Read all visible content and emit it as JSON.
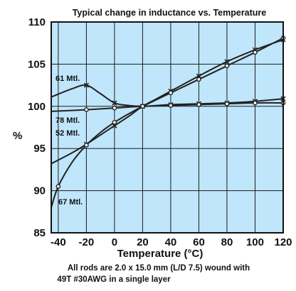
{
  "chart_data": {
    "type": "line",
    "title": "Typical change in inductance vs. Temperature",
    "xlabel": "Temperature (°C)",
    "ylabel": "%",
    "xlim": [
      -45,
      120
    ],
    "ylim": [
      85,
      110
    ],
    "xticks": [
      -40,
      -20,
      0,
      20,
      40,
      60,
      80,
      100,
      120
    ],
    "yticks": [
      85,
      90,
      95,
      100,
      105,
      110
    ],
    "grid": true,
    "background_color": "#bfe6fb",
    "line_color": "#222222",
    "footnote": [
      "All rods are 2.0 x 15.0 mm (L/D 7.5) wound with",
      "49T #30AWG in a single layer"
    ],
    "series": [
      {
        "name": "61 Mtl.",
        "marker": "x",
        "x": [
          -45,
          -30,
          -20,
          -10,
          0,
          10,
          20,
          30,
          40,
          60,
          80,
          100,
          120
        ],
        "y": [
          101.1,
          102.1,
          102.5,
          101.5,
          100.4,
          100.1,
          100.0,
          100.1,
          100.2,
          100.3,
          100.4,
          100.6,
          100.9
        ]
      },
      {
        "name": "78 Mtl.",
        "marker": "circle",
        "x": [
          -45,
          -20,
          0,
          20,
          40,
          60,
          80,
          100,
          120
        ],
        "y": [
          99.4,
          99.6,
          99.8,
          100.0,
          100.1,
          100.2,
          100.3,
          100.4,
          100.4
        ]
      },
      {
        "name": "52 Mtl.",
        "marker": "x",
        "x": [
          -45,
          -30,
          -20,
          -10,
          0,
          10,
          20,
          30,
          40,
          60,
          80,
          100,
          120
        ],
        "y": [
          93.2,
          94.5,
          95.5,
          96.6,
          97.7,
          98.8,
          100.0,
          100.9,
          101.8,
          103.6,
          105.3,
          106.7,
          107.9
        ]
      },
      {
        "name": "67 Mtl.",
        "marker": "circle",
        "x": [
          -45,
          -40,
          -30,
          -20,
          -10,
          0,
          10,
          20,
          40,
          60,
          80,
          100,
          120
        ],
        "y": [
          88.0,
          90.5,
          93.4,
          95.4,
          96.9,
          98.1,
          99.1,
          100.0,
          101.6,
          103.2,
          104.8,
          106.4,
          108.1
        ]
      }
    ]
  }
}
